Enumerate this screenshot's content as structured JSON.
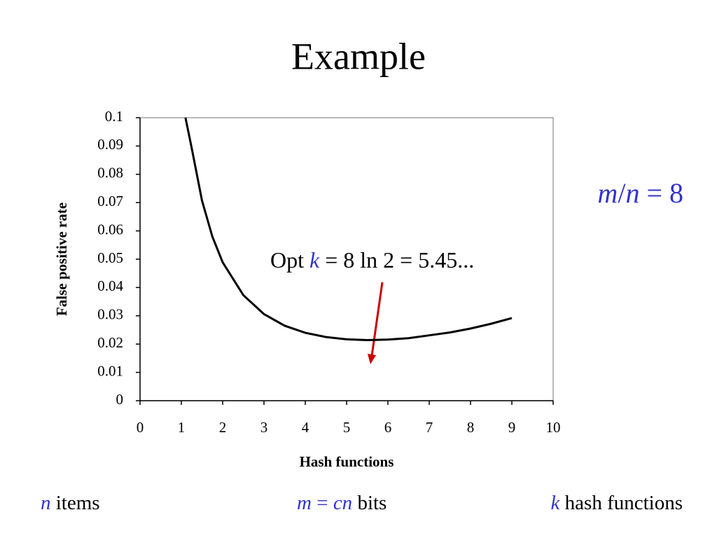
{
  "chart_data": {
    "type": "line",
    "title": "Example",
    "x": [
      1.1,
      1.25,
      1.5,
      1.75,
      2,
      2.5,
      3,
      3.5,
      4,
      4.5,
      5,
      5.5,
      6,
      6.5,
      7,
      7.5,
      8,
      8.5,
      9
    ],
    "series": [
      {
        "name": "False positive rate",
        "color": "#000000",
        "values": [
          0.1,
          0.0893,
          0.0707,
          0.058,
          0.0489,
          0.0373,
          0.0306,
          0.0265,
          0.024,
          0.0225,
          0.0217,
          0.0214,
          0.0216,
          0.0221,
          0.0231,
          0.0241,
          0.0255,
          0.0272,
          0.0292
        ]
      }
    ],
    "xlim": [
      0,
      10
    ],
    "xticks": [
      0,
      1,
      2,
      3,
      4,
      5,
      6,
      7,
      8,
      9,
      10
    ],
    "ylim": [
      0,
      0.1
    ],
    "yticks": [
      0,
      0.01,
      0.02,
      0.03,
      0.04,
      0.05,
      0.06,
      0.07,
      0.08,
      0.09,
      0.1
    ],
    "xlabel": "Hash functions",
    "ylabel": "False positive rate",
    "annotation": [
      "Opt ",
      "k",
      " = 8 ln 2 = 5.45..."
    ]
  },
  "side_note": [
    "m",
    "/",
    "n",
    " = 8"
  ],
  "footer": {
    "items": [
      "n",
      " items"
    ],
    "bits": [
      "m",
      " = ",
      "cn",
      " bits"
    ],
    "hashes": [
      "k",
      " hash functions"
    ]
  }
}
